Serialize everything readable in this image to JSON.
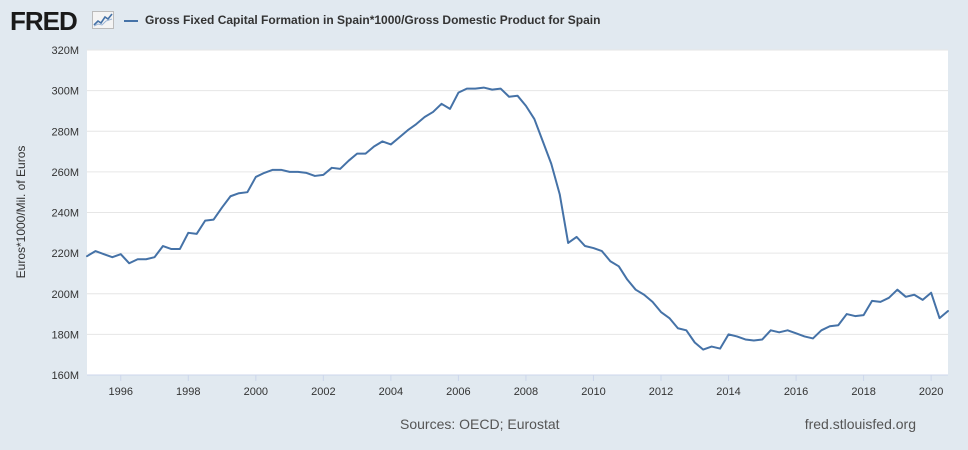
{
  "header": {
    "logo_text": "FRED",
    "logo_icon": "trend-line-icon"
  },
  "chart_data": {
    "type": "line",
    "title": "Gross Fixed Capital Formation in Spain*1000/Gross Domestic Product for Spain",
    "ylabel": "Euros*1000/Mil. of Euros",
    "xlabel": "",
    "ylim": [
      160,
      320
    ],
    "y_ticks": [
      "160M",
      "180M",
      "200M",
      "220M",
      "240M",
      "260M",
      "280M",
      "300M",
      "320M"
    ],
    "x_ticks": [
      "1996",
      "1998",
      "2000",
      "2002",
      "2004",
      "2006",
      "2008",
      "2010",
      "2012",
      "2014",
      "2016",
      "2018",
      "2020"
    ],
    "xlim": [
      1995.0,
      2020.5
    ],
    "grid": "horizontal",
    "line_color": "#4572a7",
    "series": [
      {
        "name": "Gross Fixed Capital Formation in Spain*1000/Gross Domestic Product for Spain",
        "x": [
          "1995-01",
          "1995-04",
          "1995-07",
          "1995-10",
          "1996-01",
          "1996-04",
          "1996-07",
          "1996-10",
          "1997-01",
          "1997-04",
          "1997-07",
          "1997-10",
          "1998-01",
          "1998-04",
          "1998-07",
          "1998-10",
          "1999-01",
          "1999-04",
          "1999-07",
          "1999-10",
          "2000-01",
          "2000-04",
          "2000-07",
          "2000-10",
          "2001-01",
          "2001-04",
          "2001-07",
          "2001-10",
          "2002-01",
          "2002-04",
          "2002-07",
          "2002-10",
          "2003-01",
          "2003-04",
          "2003-07",
          "2003-10",
          "2004-01",
          "2004-04",
          "2004-07",
          "2004-10",
          "2005-01",
          "2005-04",
          "2005-07",
          "2005-10",
          "2006-01",
          "2006-04",
          "2006-07",
          "2006-10",
          "2007-01",
          "2007-04",
          "2007-07",
          "2007-10",
          "2008-01",
          "2008-04",
          "2008-07",
          "2008-10",
          "2009-01",
          "2009-04",
          "2009-07",
          "2009-10",
          "2010-01",
          "2010-04",
          "2010-07",
          "2010-10",
          "2011-01",
          "2011-04",
          "2011-07",
          "2011-10",
          "2012-01",
          "2012-04",
          "2012-07",
          "2012-10",
          "2013-01",
          "2013-04",
          "2013-07",
          "2013-10",
          "2014-01",
          "2014-04",
          "2014-07",
          "2014-10",
          "2015-01",
          "2015-04",
          "2015-07",
          "2015-10",
          "2016-01",
          "2016-04",
          "2016-07",
          "2016-10",
          "2017-01",
          "2017-04",
          "2017-07",
          "2017-10",
          "2018-01",
          "2018-04",
          "2018-07",
          "2018-10",
          "2019-01",
          "2019-04",
          "2019-07",
          "2019-10",
          "2020-01",
          "2020-04",
          "2020-07"
        ],
        "values": [
          218.5,
          221.0,
          219.5,
          218.0,
          219.5,
          215.0,
          217.0,
          217.0,
          218.0,
          223.5,
          222.0,
          222.0,
          230.0,
          229.5,
          236.0,
          236.5,
          242.5,
          248.0,
          249.5,
          250.0,
          257.5,
          259.5,
          261.0,
          261.0,
          260.0,
          260.0,
          259.5,
          258.0,
          258.5,
          262.0,
          261.5,
          265.5,
          269.0,
          269.0,
          272.5,
          275.0,
          273.5,
          277.0,
          280.5,
          283.5,
          287.0,
          289.5,
          293.5,
          291.0,
          299.0,
          301.0,
          301.0,
          301.5,
          300.5,
          301.0,
          297.0,
          297.5,
          292.5,
          286.0,
          275.0,
          264.0,
          249.0,
          225.0,
          228.0,
          223.5,
          222.5,
          221.0,
          216.0,
          213.5,
          207.0,
          202.0,
          199.5,
          196.0,
          191.0,
          188.0,
          183.0,
          182.0,
          176.0,
          172.5,
          174.0,
          173.0,
          180.0,
          179.0,
          177.5,
          177.0,
          177.5,
          182.0,
          181.0,
          182.0,
          180.5,
          179.0,
          178.0,
          182.0,
          184.0,
          184.5,
          190.0,
          189.0,
          189.5,
          196.5,
          196.0,
          198.0,
          202.0,
          198.5,
          199.5,
          197.0,
          200.5,
          188.0,
          191.5
        ]
      }
    ]
  },
  "footer": {
    "sources": "Sources: OECD; Eurostat",
    "site": "fred.stlouisfed.org"
  }
}
